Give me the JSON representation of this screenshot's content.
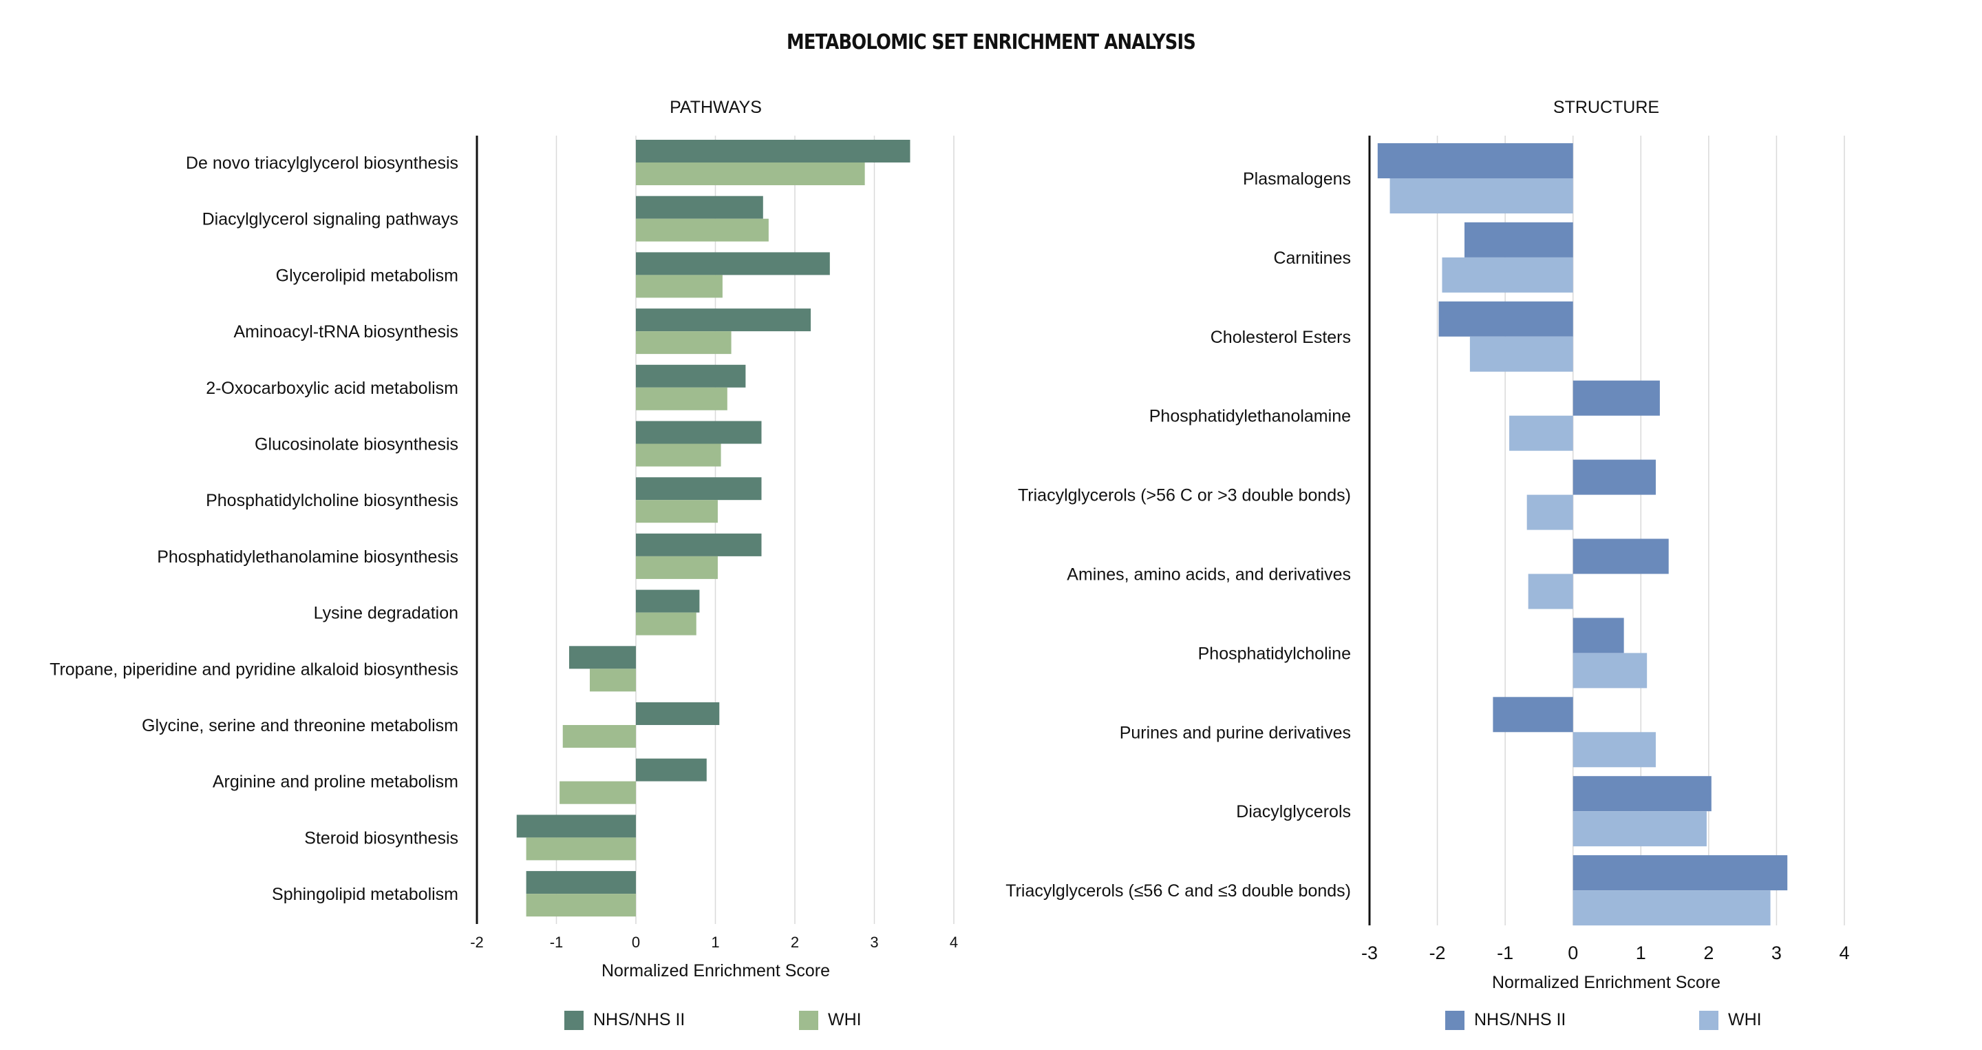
{
  "title": "METABOLOMIC SET ENRICHMENT ANALYSIS",
  "chart_data": [
    {
      "type": "bar",
      "orientation": "horizontal",
      "title": "PATHWAYS",
      "xlabel": "Normalized Enrichment Score",
      "xlim": [
        -2,
        4
      ],
      "xticks": [
        -2,
        -1,
        0,
        1,
        2,
        3,
        4
      ],
      "grid": true,
      "legend_position": "bottom",
      "categories": [
        "De novo triacylglycerol biosynthesis",
        "Diacylglycerol signaling pathways",
        "Glycerolipid metabolism",
        "Aminoacyl-tRNA biosynthesis",
        "2-Oxocarboxylic acid metabolism",
        "Glucosinolate biosynthesis",
        "Phosphatidylcholine biosynthesis",
        "Phosphatidylethanolamine biosynthesis",
        "Lysine degradation",
        "Tropane, piperidine and pyridine alkaloid biosynthesis",
        "Glycine, serine and threonine metabolism",
        "Arginine and proline metabolism",
        "Steroid biosynthesis",
        "Sphingolipid metabolism"
      ],
      "series": [
        {
          "name": "NHS/NHS II",
          "color": "#5a8174",
          "values": [
            3.45,
            1.6,
            2.44,
            2.2,
            1.38,
            1.58,
            1.58,
            1.58,
            0.8,
            -0.84,
            1.05,
            0.89,
            -1.5,
            -1.38
          ]
        },
        {
          "name": "WHI",
          "color": "#9fbc8f",
          "values": [
            2.88,
            1.67,
            1.09,
            1.2,
            1.15,
            1.07,
            1.03,
            1.03,
            0.76,
            -0.58,
            -0.92,
            -0.96,
            -1.38,
            -1.38
          ]
        }
      ]
    },
    {
      "type": "bar",
      "orientation": "horizontal",
      "title": "STRUCTURE",
      "xlabel": "Normalized Enrichment Score",
      "xlim": [
        -3,
        4
      ],
      "xticks": [
        -3,
        -2,
        -1,
        0,
        1,
        2,
        3,
        4
      ],
      "grid": true,
      "legend_position": "bottom",
      "categories": [
        "Plasmalogens",
        "Carnitines",
        "Cholesterol Esters",
        "Phosphatidylethanolamine",
        "Triacylglycerols (>56 C or >3 double bonds)",
        "Amines, amino acids, and derivatives",
        "Phosphatidylcholine",
        "Purines and purine derivatives",
        "Diacylglycerols",
        "Triacylglycerols (≤56 C and ≤3 double bonds)"
      ],
      "series": [
        {
          "name": "NHS/NHS II",
          "color": "#6a8abb",
          "values": [
            -2.88,
            -1.6,
            -1.98,
            1.28,
            1.22,
            1.41,
            0.75,
            -1.18,
            2.04,
            3.16
          ]
        },
        {
          "name": "WHI",
          "color": "#9db8da",
          "values": [
            -2.7,
            -1.93,
            -1.52,
            -0.94,
            -0.68,
            -0.66,
            1.09,
            1.22,
            1.97,
            2.91
          ]
        }
      ]
    }
  ]
}
